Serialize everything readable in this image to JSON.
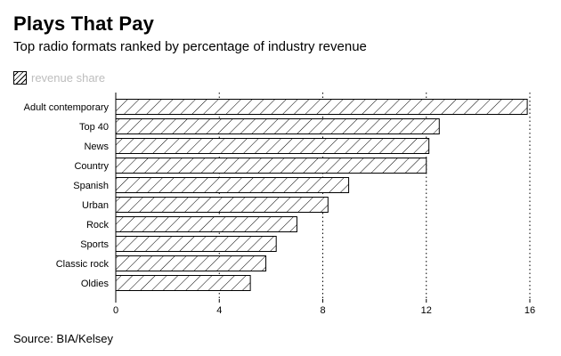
{
  "chart_data": {
    "type": "bar",
    "orientation": "horizontal",
    "title": "Plays That Pay",
    "subtitle": "Top radio formats ranked by percentage of industry revenue",
    "legend": {
      "label": "revenue share",
      "placement": "top-left"
    },
    "categories": [
      "Adult contemporary",
      "Top 40",
      "News",
      "Country",
      "Spanish",
      "Urban",
      "Rock",
      "Sports",
      "Classic rock",
      "Oldies"
    ],
    "values": [
      15.9,
      12.5,
      12.1,
      12.0,
      9.0,
      8.2,
      7.0,
      6.2,
      5.8,
      5.2
    ],
    "xlim": [
      0,
      16
    ],
    "xticks": [
      "0",
      "4",
      "8",
      "12",
      "16"
    ],
    "grid": true,
    "source": "Source: BIA/Kelsey",
    "colors": {
      "bar_fill": "#ffffff",
      "hatch": "#000000",
      "legend_text": "#bdbdbd"
    }
  }
}
